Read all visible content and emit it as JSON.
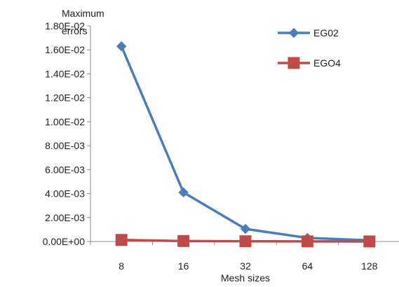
{
  "chart_data": {
    "type": "line",
    "categories": [
      "8",
      "16",
      "32",
      "64",
      "128"
    ],
    "ylabel": "Maximum errors",
    "xlabel": "Mesh sizes",
    "ylim": [
      0,
      0.018
    ],
    "yticks": [
      0,
      0.002,
      0.004,
      0.006,
      0.008,
      0.01,
      0.012,
      0.014,
      0.016,
      0.018
    ],
    "ytick_labels": [
      "0.00E+00",
      "2.00E-03",
      "4.00E-03",
      "6.00E-03",
      "8.00E-03",
      "1.00E-02",
      "1.20E-02",
      "1.40E-02",
      "1.60E-02",
      "1.80E-02"
    ],
    "grid": false,
    "legend_position": "top-right",
    "series": [
      {
        "name": "EG02",
        "color": "#4a7ebb",
        "marker": "diamond",
        "values": [
          0.0163,
          0.0041,
          0.00105,
          0.0003,
          0.0001
        ]
      },
      {
        "name": "EGO4",
        "color": "#be4b48",
        "marker": "square",
        "values": [
          0.00013,
          4e-05,
          2e-05,
          1e-05,
          5e-06
        ]
      }
    ]
  }
}
